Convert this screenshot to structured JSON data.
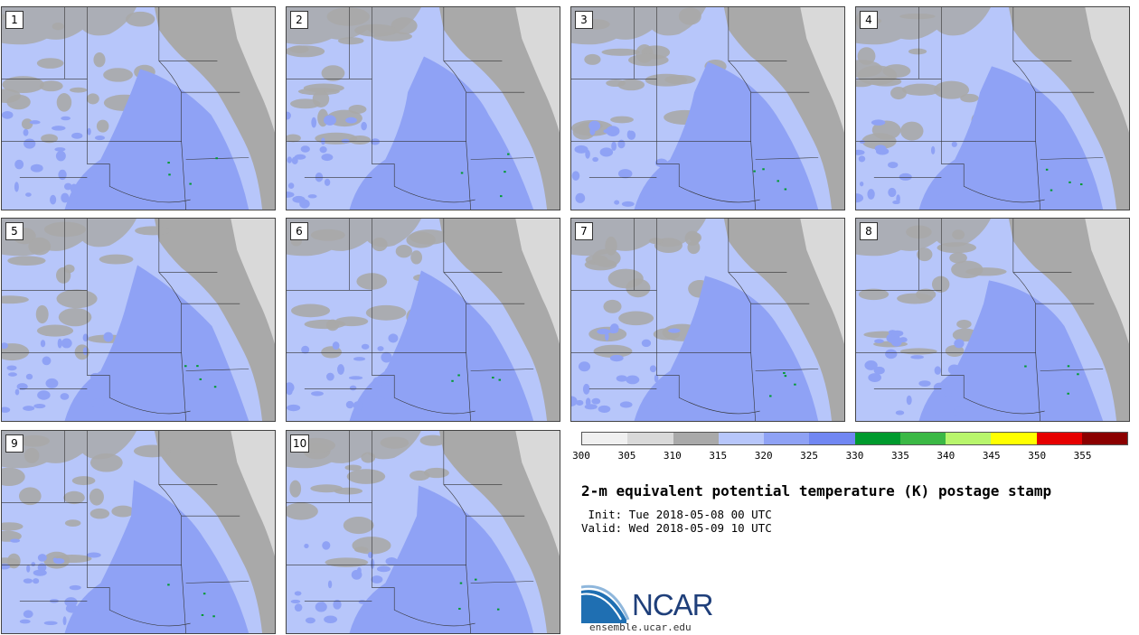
{
  "panels": [
    {
      "label": "1"
    },
    {
      "label": "2"
    },
    {
      "label": "3"
    },
    {
      "label": "4"
    },
    {
      "label": "5"
    },
    {
      "label": "6"
    },
    {
      "label": "7"
    },
    {
      "label": "8"
    },
    {
      "label": "9"
    },
    {
      "label": "10"
    }
  ],
  "colorbar": {
    "colors": [
      "#f0f0f0",
      "#d9d9d9",
      "#a9a9a9",
      "#b7c6fa",
      "#8fa2f5",
      "#7187f2",
      "#009a2e",
      "#3bb845",
      "#b8f56c",
      "#ffff00",
      "#e60000",
      "#8b0000"
    ],
    "ticks": [
      "300",
      "305",
      "310",
      "315",
      "320",
      "325",
      "330",
      "335",
      "340",
      "345",
      "350",
      "355"
    ]
  },
  "title": "2-m equivalent potential temperature (K) postage stamp",
  "init": " Init: Tue 2018-05-08 00 UTC",
  "valid": "Valid: Wed 2018-05-09 10 UTC",
  "logo": {
    "text": "NCAR",
    "url": "ensemble.ucar.edu"
  }
}
